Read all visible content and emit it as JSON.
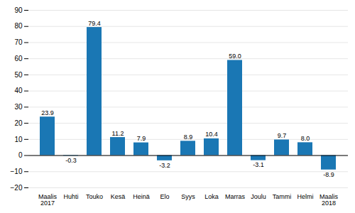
{
  "chart_data": {
    "type": "bar",
    "categories": [
      "Maalis\n2017",
      "Huhti",
      "Touko",
      "Kesä",
      "Heinä",
      "Elo",
      "Syys",
      "Loka",
      "Marras",
      "Joulu",
      "Tammi",
      "Helmi",
      "Maalis\n2018"
    ],
    "values": [
      23.9,
      -0.3,
      79.4,
      11.2,
      7.9,
      -3.2,
      8.9,
      10.4,
      59.0,
      -3.1,
      9.7,
      8.0,
      -8.9
    ],
    "value_labels": [
      "23.9",
      "-0.3",
      "79.4",
      "11.2",
      "7.9",
      "-3.2",
      "8.9",
      "10.4",
      "59.0",
      "-3.1",
      "9.7",
      "8.0",
      "-8.9"
    ],
    "color": "#1a77b4",
    "ylim": [
      -20,
      90
    ],
    "yticks": [
      -20,
      -10,
      0,
      10,
      20,
      30,
      40,
      50,
      60,
      70,
      80,
      90
    ],
    "grid": true,
    "data_labels": true
  }
}
